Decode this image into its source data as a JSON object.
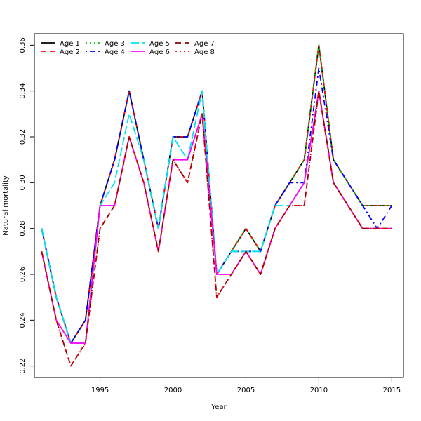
{
  "chart_data": {
    "type": "line",
    "title": "",
    "xlabel": "Year",
    "ylabel": "Natural mortality",
    "xlim": [
      1990.5,
      2015.8
    ],
    "ylim": [
      0.215,
      0.365
    ],
    "xticks": [
      1995,
      2000,
      2005,
      2010,
      2015
    ],
    "yticks": [
      0.22,
      0.24,
      0.26,
      0.28,
      0.3,
      0.32,
      0.34,
      0.36
    ],
    "ytick_labels": [
      "0.22",
      "0.24",
      "0.26",
      "0.28",
      "0.30",
      "0.32",
      "0.34",
      "0.36"
    ],
    "legend_position": "top-left",
    "grid": false,
    "x": [
      1991,
      1992,
      1993,
      1994,
      1995,
      1996,
      1997,
      1998,
      1999,
      2000,
      2001,
      2002,
      2003,
      2004,
      2005,
      2006,
      2007,
      2008,
      2009,
      2010,
      2011,
      2012,
      2013,
      2014,
      2015
    ],
    "series": [
      {
        "name": "Age 1",
        "color": "#000000",
        "dash": "solid",
        "values": [
          0.28,
          0.25,
          0.23,
          0.24,
          0.29,
          0.31,
          0.34,
          0.31,
          0.28,
          0.32,
          0.32,
          0.34,
          0.26,
          0.27,
          0.28,
          0.27,
          0.29,
          0.3,
          0.31,
          0.36,
          0.31,
          0.3,
          0.29,
          0.29,
          0.29
        ]
      },
      {
        "name": "Age 2",
        "color": "#ff0000",
        "dash": "dashed",
        "values": [
          0.28,
          0.25,
          0.23,
          0.24,
          0.29,
          0.31,
          0.34,
          0.31,
          0.28,
          0.32,
          0.32,
          0.34,
          0.26,
          0.27,
          0.28,
          0.27,
          0.29,
          0.3,
          0.31,
          0.36,
          0.31,
          0.3,
          0.29,
          0.29,
          0.29
        ]
      },
      {
        "name": "Age 3",
        "color": "#00cd00",
        "dash": "dotted",
        "values": [
          0.28,
          0.25,
          0.23,
          0.24,
          0.29,
          0.31,
          0.34,
          0.31,
          0.28,
          0.32,
          0.32,
          0.34,
          0.26,
          0.27,
          0.28,
          0.27,
          0.29,
          0.3,
          0.31,
          0.36,
          0.31,
          0.3,
          0.29,
          0.29,
          0.29
        ]
      },
      {
        "name": "Age 4",
        "color": "#0000ff",
        "dash": "dotdash",
        "values": [
          0.28,
          0.25,
          0.23,
          0.24,
          0.29,
          0.31,
          0.34,
          0.31,
          0.28,
          0.32,
          0.32,
          0.34,
          0.26,
          0.27,
          0.27,
          0.27,
          0.29,
          0.3,
          0.3,
          0.35,
          0.31,
          0.3,
          0.29,
          0.28,
          0.29
        ]
      },
      {
        "name": "Age 5",
        "color": "#00e5ee",
        "dash": "longdash",
        "values": [
          0.28,
          0.25,
          0.23,
          0.23,
          0.29,
          0.3,
          0.33,
          0.31,
          0.28,
          0.32,
          0.31,
          0.34,
          0.26,
          0.27,
          0.27,
          0.27,
          0.29,
          0.29,
          0.3,
          0.34,
          0.3,
          0.29,
          0.28,
          0.28,
          0.28
        ]
      },
      {
        "name": "Age 6",
        "color": "#ff00ff",
        "dash": "solid",
        "values": [
          0.27,
          0.24,
          0.23,
          0.23,
          0.29,
          0.29,
          0.32,
          0.3,
          0.27,
          0.31,
          0.31,
          0.33,
          0.26,
          0.26,
          0.27,
          0.26,
          0.28,
          0.29,
          0.3,
          0.34,
          0.3,
          0.29,
          0.28,
          0.28,
          0.28
        ]
      },
      {
        "name": "Age 7",
        "color": "#8b0000",
        "dash": "dashed",
        "values": [
          0.27,
          0.24,
          0.22,
          0.23,
          0.28,
          0.29,
          0.32,
          0.3,
          0.27,
          0.31,
          0.3,
          0.33,
          0.25,
          0.26,
          0.27,
          0.26,
          0.28,
          0.29,
          0.29,
          0.34,
          0.3,
          0.29,
          0.28,
          0.28,
          0.28
        ]
      },
      {
        "name": "Age 8",
        "color": "#ff0000",
        "dash": "dotted",
        "values": [
          0.27,
          0.24,
          0.22,
          0.23,
          0.28,
          0.29,
          0.32,
          0.3,
          0.27,
          0.31,
          0.3,
          0.33,
          0.25,
          0.26,
          0.27,
          0.26,
          0.28,
          0.29,
          0.29,
          0.34,
          0.3,
          0.29,
          0.28,
          0.28,
          0.28
        ]
      }
    ]
  }
}
